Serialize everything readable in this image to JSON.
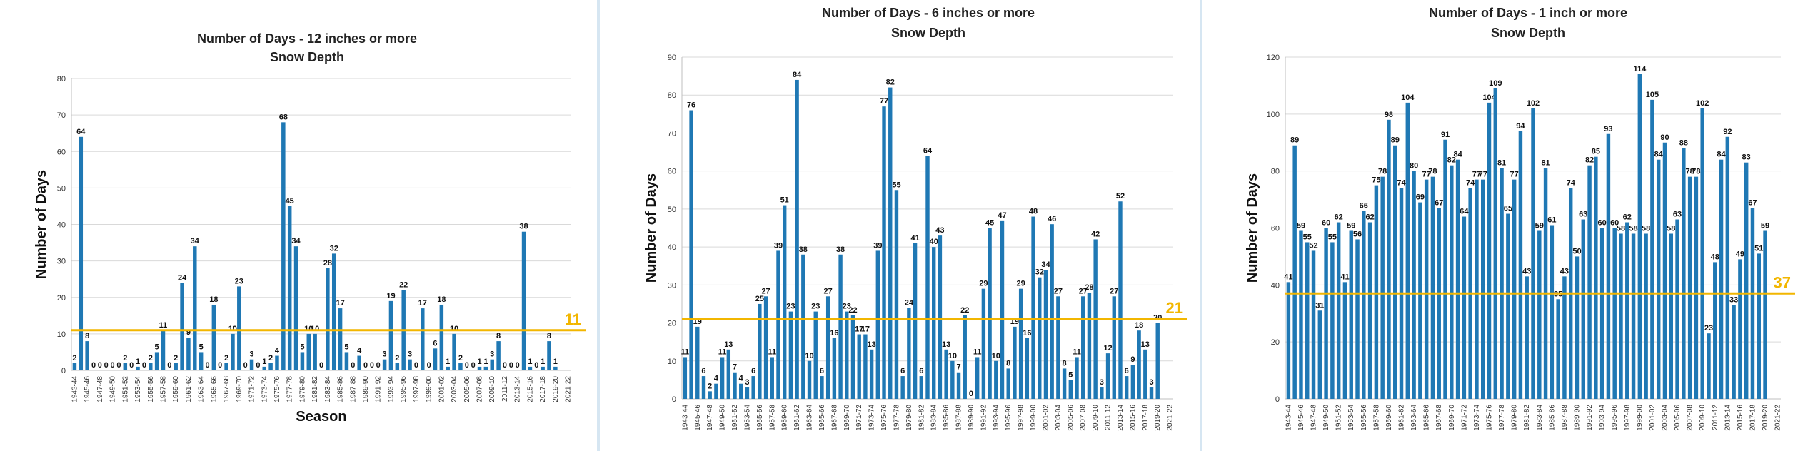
{
  "colors": {
    "bar": "#1f78b4",
    "reference_line": "#f2b600",
    "grid": "#d9d9d9",
    "divider": "#d6e6f2"
  },
  "chart_data": [
    {
      "type": "bar",
      "title": "Number of Days - 12 inches or more",
      "subtitle": "Snow Depth",
      "xlabel": "Season",
      "ylabel": "Number of Days",
      "ylim": [
        0,
        80
      ],
      "yticks": [
        0,
        10,
        20,
        30,
        40,
        50,
        60,
        70,
        80
      ],
      "grid": true,
      "reference_line": {
        "value": 11,
        "label": "11"
      },
      "categories": [
        "1943-44",
        "1944-45",
        "1945-46",
        "1946-47",
        "1947-48",
        "1948-49",
        "1949-50",
        "1950-51",
        "1951-52",
        "1952-53",
        "1953-54",
        "1954-55",
        "1955-56",
        "1956-57",
        "1957-58",
        "1958-59",
        "1959-60",
        "1960-61",
        "1961-62",
        "1962-63",
        "1963-64",
        "1964-65",
        "1965-66",
        "1966-67",
        "1967-68",
        "1968-69",
        "1969-70",
        "1970-71",
        "1971-72",
        "1972-73",
        "1973-74",
        "1974-75",
        "1975-76",
        "1976-77",
        "1977-78",
        "1978-79",
        "1979-80",
        "1980-81",
        "1981-82",
        "1982-83",
        "1983-84",
        "1984-85",
        "1985-86",
        "1986-87",
        "1987-88",
        "1988-89",
        "1989-90",
        "1990-91",
        "1991-92",
        "1992-93",
        "1993-94",
        "1994-95",
        "1995-96",
        "1996-97",
        "1997-98",
        "1998-99",
        "1999-00",
        "2000-01",
        "2001-02",
        "2002-03",
        "2003-04",
        "2004-05",
        "2005-06",
        "2006-07",
        "2007-08",
        "2008-09",
        "2009-10",
        "2010-11",
        "2011-12",
        "2012-13",
        "2013-14",
        "2014-15",
        "2015-16",
        "2016-17",
        "2017-18",
        "2018-19",
        "2019-20",
        "2020-21",
        "2021-22"
      ],
      "values": [
        2,
        64,
        8,
        0,
        0,
        0,
        0,
        0,
        2,
        0,
        1,
        0,
        2,
        5,
        11,
        0,
        2,
        24,
        9,
        34,
        5,
        0,
        18,
        0,
        2,
        10,
        23,
        0,
        3,
        0,
        1,
        2,
        4,
        68,
        45,
        34,
        5,
        10,
        10,
        0,
        28,
        32,
        17,
        5,
        0,
        4,
        0,
        0,
        0,
        3,
        19,
        2,
        22,
        3,
        0,
        17,
        0,
        6,
        18,
        1,
        10,
        2,
        0,
        0,
        1,
        1,
        3,
        8,
        0,
        0,
        0,
        38,
        1,
        0,
        1,
        8,
        1,
        0,
        0
      ],
      "labels": [
        "2",
        "64",
        "8",
        "0",
        "0",
        "0",
        "0",
        "0",
        "2",
        "0",
        "1",
        "0",
        "2",
        "5",
        "11",
        "0",
        "2",
        "24",
        "9",
        "34",
        "5",
        "0",
        "18",
        "0",
        "2",
        "10",
        "23",
        "0",
        "3",
        "0",
        "1",
        "2",
        "4",
        "68",
        "45",
        "34",
        "5",
        "10",
        "10",
        "0",
        "28",
        "32",
        "17",
        "5",
        "0",
        "4",
        "0",
        "0",
        "0",
        "3",
        "19",
        "2",
        "22",
        "3",
        "0",
        "17",
        "0",
        "6",
        "18",
        "1",
        "10",
        "2",
        "0",
        "0",
        "1",
        "1",
        "3",
        "8",
        "0",
        "0",
        "0",
        "38",
        "1",
        "0",
        "1",
        "8",
        "1",
        "",
        ""
      ]
    },
    {
      "type": "bar",
      "title": "Number of Days - 6 inches or more",
      "subtitle": "Snow Depth",
      "xlabel": "",
      "ylabel": "Number of Days",
      "ylim": [
        0,
        90
      ],
      "yticks": [
        0,
        10,
        20,
        30,
        40,
        50,
        60,
        70,
        80,
        90
      ],
      "grid": true,
      "reference_line": {
        "value": 21,
        "label": "21"
      },
      "categories": [
        "1943-44",
        "1944-45",
        "1945-46",
        "1946-47",
        "1947-48",
        "1948-49",
        "1949-50",
        "1950-51",
        "1951-52",
        "1952-53",
        "1953-54",
        "1954-55",
        "1955-56",
        "1956-57",
        "1957-58",
        "1958-59",
        "1959-60",
        "1960-61",
        "1961-62",
        "1962-63",
        "1963-64",
        "1964-65",
        "1965-66",
        "1966-67",
        "1967-68",
        "1968-69",
        "1969-70",
        "1970-71",
        "1971-72",
        "1972-73",
        "1973-74",
        "1974-75",
        "1975-76",
        "1976-77",
        "1977-78",
        "1978-79",
        "1979-80",
        "1980-81",
        "1981-82",
        "1982-83",
        "1983-84",
        "1984-85",
        "1985-86",
        "1986-87",
        "1987-88",
        "1988-89",
        "1989-90",
        "1990-91",
        "1991-92",
        "1992-93",
        "1993-94",
        "1994-95",
        "1995-96",
        "1996-97",
        "1997-98",
        "1998-99",
        "1999-00",
        "2000-01",
        "2001-02",
        "2002-03",
        "2003-04",
        "2004-05",
        "2005-06",
        "2006-07",
        "2007-08",
        "2008-09",
        "2009-10",
        "2010-11",
        "2011-12",
        "2012-13",
        "2013-14",
        "2014-15",
        "2015-16",
        "2016-17",
        "2017-18",
        "2018-19",
        "2019-20",
        "2020-21",
        "2021-22"
      ],
      "values": [
        11,
        76,
        19,
        6,
        2,
        4,
        11,
        13,
        7,
        4,
        3,
        6,
        25,
        27,
        11,
        39,
        51,
        23,
        84,
        38,
        10,
        23,
        6,
        27,
        16,
        38,
        23,
        22,
        17,
        17,
        13,
        39,
        77,
        82,
        55,
        6,
        24,
        41,
        6,
        64,
        40,
        43,
        13,
        10,
        7,
        22,
        0,
        11,
        29,
        45,
        10,
        47,
        8,
        19,
        29,
        16,
        48,
        32,
        34,
        46,
        27,
        8,
        5,
        11,
        27,
        28,
        42,
        3,
        12,
        27,
        52,
        6,
        9,
        18,
        13,
        3,
        20,
        0,
        0
      ],
      "labels": [
        "11",
        "76",
        "19",
        "6",
        "2",
        "4",
        "11",
        "13",
        "7",
        "4",
        "3",
        "6",
        "25",
        "27",
        "11",
        "39",
        "51",
        "23",
        "84",
        "38",
        "10",
        "23",
        "6",
        "27",
        "16",
        "38",
        "23",
        "22",
        "17",
        "17",
        "13",
        "39",
        "77",
        "82",
        "55",
        "6",
        "24",
        "41",
        "6",
        "64",
        "40",
        "43",
        "13",
        "10",
        "7",
        "22",
        "0",
        "11",
        "29",
        "45",
        "10",
        "47",
        "8",
        "19",
        "29",
        "16",
        "48",
        "32",
        "34",
        "46",
        "27",
        "8",
        "5",
        "11",
        "27",
        "28",
        "42",
        "3",
        "12",
        "27",
        "52",
        "6",
        "9",
        "18",
        "13",
        "3",
        "20",
        "",
        ""
      ]
    },
    {
      "type": "bar",
      "title": "Number of Days - 1 inch or more",
      "subtitle": "Snow Depth",
      "xlabel": "",
      "ylabel": "Number of Days",
      "ylim": [
        0,
        120
      ],
      "yticks": [
        0,
        20,
        40,
        60,
        80,
        100,
        120
      ],
      "grid": true,
      "reference_line": {
        "value": 37,
        "label": "37"
      },
      "categories": [
        "1943-44",
        "1944-45",
        "1945-46",
        "1946-47",
        "1947-48",
        "1948-49",
        "1949-50",
        "1950-51",
        "1951-52",
        "1952-53",
        "1953-54",
        "1954-55",
        "1955-56",
        "1956-57",
        "1957-58",
        "1958-59",
        "1959-60",
        "1960-61",
        "1961-62",
        "1962-63",
        "1963-64",
        "1964-65",
        "1965-66",
        "1966-67",
        "1967-68",
        "1968-69",
        "1969-70",
        "1970-71",
        "1971-72",
        "1972-73",
        "1973-74",
        "1974-75",
        "1975-76",
        "1976-77",
        "1977-78",
        "1978-79",
        "1979-80",
        "1980-81",
        "1981-82",
        "1982-83",
        "1983-84",
        "1984-85",
        "1985-86",
        "1986-87",
        "1987-88",
        "1988-89",
        "1989-90",
        "1990-91",
        "1991-92",
        "1992-93",
        "1993-94",
        "1994-95",
        "1995-96",
        "1996-97",
        "1997-98",
        "1998-99",
        "1999-00",
        "2000-01",
        "2001-02",
        "2002-03",
        "2003-04",
        "2004-05",
        "2005-06",
        "2006-07",
        "2007-08",
        "2008-09",
        "2009-10",
        "2010-11",
        "2011-12",
        "2012-13",
        "2013-14",
        "2014-15",
        "2015-16",
        "2016-17",
        "2017-18",
        "2018-19",
        "2019-20",
        "2020-21",
        "2021-22"
      ],
      "values": [
        41,
        89,
        59,
        55,
        52,
        31,
        60,
        55,
        62,
        41,
        59,
        56,
        66,
        62,
        75,
        78,
        98,
        89,
        74,
        104,
        80,
        69,
        77,
        78,
        67,
        91,
        82,
        84,
        64,
        74,
        77,
        77,
        104,
        109,
        81,
        65,
        77,
        94,
        43,
        102,
        59,
        81,
        61,
        35,
        43,
        74,
        50,
        63,
        82,
        85,
        60,
        93,
        60,
        58,
        62,
        58,
        114,
        58,
        105,
        84,
        90,
        58,
        63,
        88,
        78,
        78,
        102,
        23,
        48,
        84,
        92,
        33,
        49,
        83,
        67,
        51,
        59,
        0,
        0
      ],
      "labels": [
        "41",
        "89",
        "59",
        "55",
        "52",
        "31",
        "60",
        "55",
        "62",
        "41",
        "59",
        "56",
        "66",
        "62",
        "75",
        "78",
        "98",
        "89",
        "74",
        "104",
        "80",
        "69",
        "77",
        "78",
        "67",
        "91",
        "82",
        "84",
        "64",
        "74",
        "77",
        "77",
        "104",
        "109",
        "81",
        "65",
        "77",
        "94",
        "43",
        "102",
        "59",
        "81",
        "61",
        "35",
        "43",
        "74",
        "50",
        "63",
        "82",
        "85",
        "60",
        "93",
        "60",
        "58",
        "62",
        "58",
        "114",
        "58",
        "105",
        "84",
        "90",
        "58",
        "63",
        "88",
        "78",
        "78",
        "102",
        "23",
        "48",
        "84",
        "92",
        "33",
        "49",
        "83",
        "67",
        "51",
        "59",
        "",
        ""
      ]
    }
  ]
}
